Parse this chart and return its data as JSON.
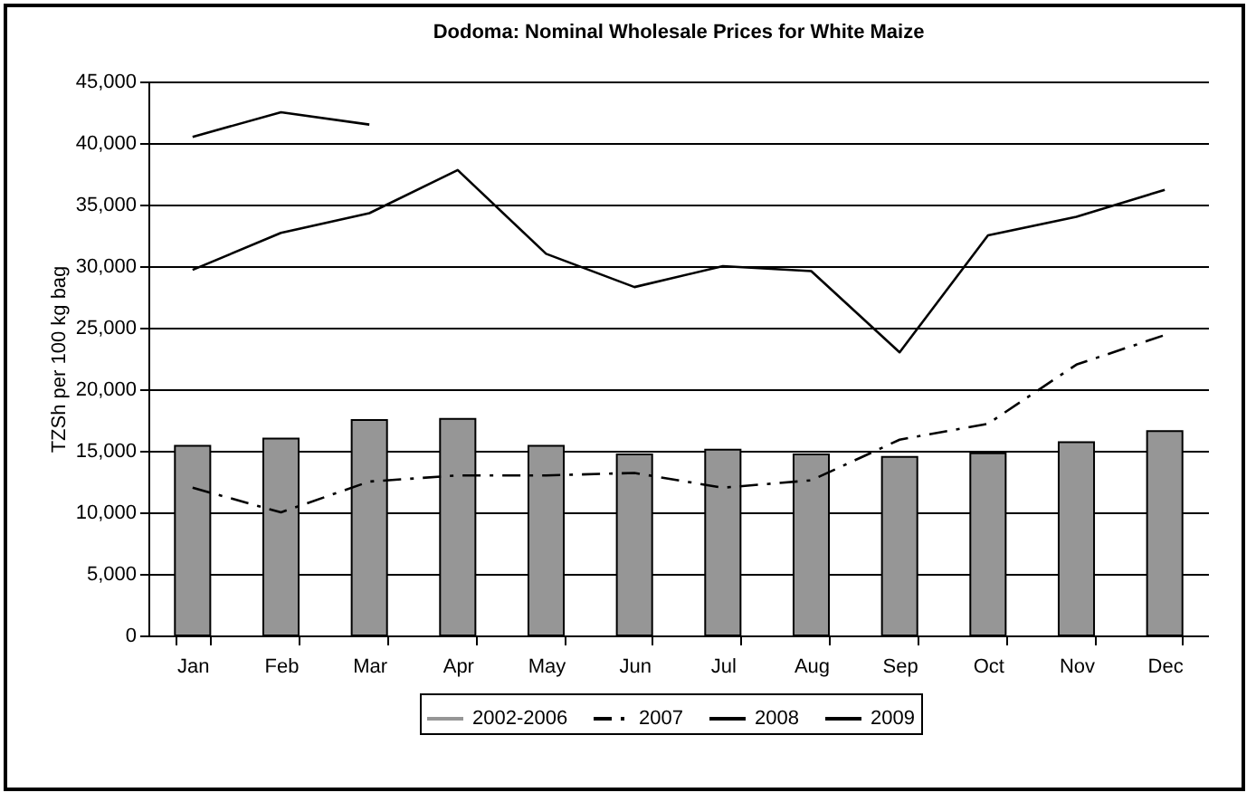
{
  "chart_data": {
    "type": "bar",
    "title": "Dodoma: Nominal Wholesale Prices for White Maize",
    "ylabel": "TZSh per 100 kg bag",
    "categories": [
      "Jan",
      "Feb",
      "Mar",
      "Apr",
      "May",
      "Jun",
      "Jul",
      "Aug",
      "Sep",
      "Oct",
      "Nov",
      "Dec"
    ],
    "series": [
      {
        "name": "2002-2006",
        "color": "#969696",
        "values": [
          15400,
          16000,
          17500,
          17600,
          15400,
          14700,
          15100,
          14700,
          14500,
          14800,
          15700,
          16600
        ]
      },
      {
        "name": "2007",
        "type": "line",
        "line_style": "dashed",
        "color": "#000000",
        "values": [
          12000,
          10000,
          12500,
          13000,
          13000,
          13200,
          12000,
          12600,
          15900,
          17200,
          22000,
          24400
        ]
      },
      {
        "name": "2008",
        "type": "line",
        "line_style": "solid",
        "color": "#000000",
        "values": [
          29700,
          32700,
          34300,
          37800,
          31000,
          28300,
          30000,
          29600,
          23000,
          32500,
          34000,
          36200
        ]
      },
      {
        "name": "2009",
        "type": "line",
        "line_style": "solid",
        "color": "#000000",
        "values": [
          40500,
          42500,
          41500,
          null,
          null,
          null,
          null,
          null,
          null,
          null,
          null,
          null
        ]
      }
    ],
    "ylim": [
      0,
      45000
    ],
    "yticks": [
      0,
      {
        "value": 5000,
        "label": "5,000"
      },
      {
        "value": 10000,
        "label": "10,000"
      },
      {
        "value": 15000,
        "label": "15,000"
      },
      {
        "value": 20000,
        "label": "20,000"
      },
      {
        "value": 25000,
        "label": "25,000"
      },
      {
        "value": 30000,
        "label": "30,000"
      },
      {
        "value": 35000,
        "label": "35,000"
      },
      {
        "value": 40000,
        "label": "40,000"
      },
      {
        "value": 45000,
        "label": "45,000"
      }
    ],
    "grid": "y",
    "legend": "bottom",
    "marker": "none"
  }
}
